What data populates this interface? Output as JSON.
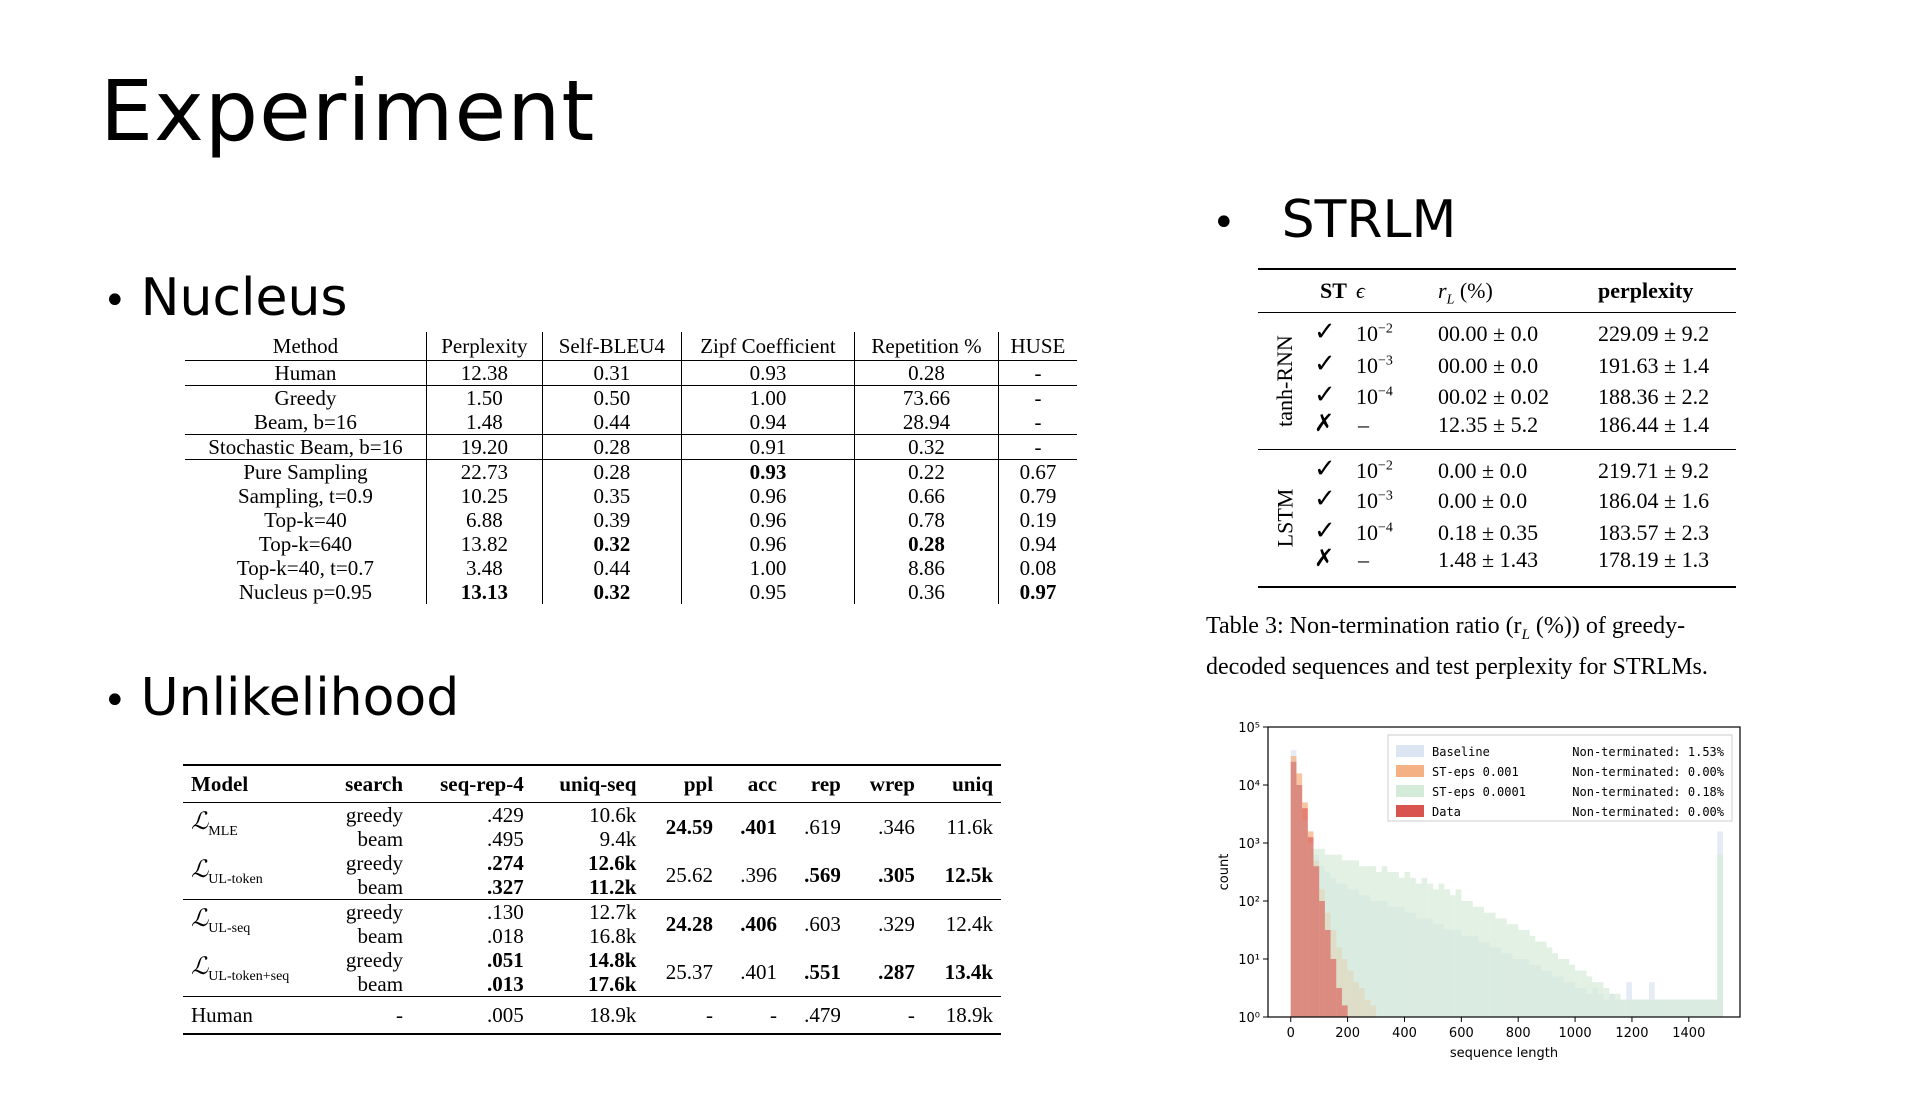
{
  "slide": {
    "title": "Experiment"
  },
  "bullets": {
    "nucleus": "Nucleus",
    "unlikelihood": "Unlikelihood",
    "strlm": "STRLM",
    "dot": "•"
  },
  "nucleus_table": {
    "headers": [
      "Method",
      "Perplexity",
      "Self-BLEU4",
      "Zipf Coefficient",
      "Repetition %",
      "HUSE"
    ],
    "rows": [
      [
        "Human",
        "12.38",
        "0.31",
        "0.93",
        "0.28",
        "-"
      ],
      [
        "Greedy",
        "1.50",
        "0.50",
        "1.00",
        "73.66",
        "-"
      ],
      [
        "Beam, b=16",
        "1.48",
        "0.44",
        "0.94",
        "28.94",
        "-"
      ],
      [
        "Stochastic Beam, b=16",
        "19.20",
        "0.28",
        "0.91",
        "0.32",
        "-"
      ],
      [
        "Pure Sampling",
        "22.73",
        "0.28",
        "0.93",
        "0.22",
        "0.67"
      ],
      [
        "Sampling, t=0.9",
        "10.25",
        "0.35",
        "0.96",
        "0.66",
        "0.79"
      ],
      [
        "Top-k=40",
        "6.88",
        "0.39",
        "0.96",
        "0.78",
        "0.19"
      ],
      [
        "Top-k=640",
        "13.82",
        "0.32",
        "0.96",
        "0.28",
        "0.94"
      ],
      [
        "Top-k=40, t=0.7",
        "3.48",
        "0.44",
        "1.00",
        "8.86",
        "0.08"
      ],
      [
        "Nucleus p=0.95",
        "13.13",
        "0.32",
        "0.95",
        "0.36",
        "0.97"
      ]
    ]
  },
  "unlikelihood_table": {
    "headers": [
      "Model",
      "search",
      "seq-rep-4",
      "uniq-seq",
      "ppl",
      "acc",
      "rep",
      "wrep",
      "uniq"
    ],
    "groups": [
      {
        "model": "ℒ",
        "sub": "MLE",
        "rows": [
          [
            "greedy",
            ".429",
            "10.6k"
          ],
          [
            "beam",
            ".495",
            "9.4k"
          ]
        ],
        "ppl": "24.59",
        "acc": ".401",
        "rep": ".619",
        "wrep": ".346",
        "uniq": "11.6k"
      },
      {
        "model": "ℒ",
        "sub": "UL-token",
        "rows": [
          [
            "greedy",
            ".274",
            "12.6k"
          ],
          [
            "beam",
            ".327",
            "11.2k"
          ]
        ],
        "ppl": "25.62",
        "acc": ".396",
        "rep": ".569",
        "wrep": ".305",
        "uniq": "12.5k"
      },
      {
        "model": "ℒ",
        "sub": "UL-seq",
        "rows": [
          [
            "greedy",
            ".130",
            "12.7k"
          ],
          [
            "beam",
            ".018",
            "16.8k"
          ]
        ],
        "ppl": "24.28",
        "acc": ".406",
        "rep": ".603",
        "wrep": ".329",
        "uniq": "12.4k"
      },
      {
        "model": "ℒ",
        "sub": "UL-token+seq",
        "rows": [
          [
            "greedy",
            ".051",
            "14.8k"
          ],
          [
            "beam",
            ".013",
            "17.6k"
          ]
        ],
        "ppl": "25.37",
        "acc": ".401",
        "rep": ".551",
        "wrep": ".287",
        "uniq": "13.4k"
      }
    ],
    "human": [
      "Human",
      "-",
      ".005",
      "18.9k",
      "-",
      "-",
      ".479",
      "-",
      "18.9k"
    ]
  },
  "strlm_table": {
    "headers": {
      "st": "ST",
      "eps": "ϵ",
      "rl": "r",
      "rl_sub": "L",
      "rl_unit": " (%)",
      "ppl": "perplexity"
    },
    "groups": [
      {
        "label": "tanh-RNN",
        "rows": [
          {
            "st": "✓",
            "eps": "10",
            "exp": "−2",
            "rl": "00.00 ± 0.0",
            "ppl": "229.09 ± 9.2"
          },
          {
            "st": "✓",
            "eps": "10",
            "exp": "−3",
            "rl": "00.00 ± 0.0",
            "ppl": "191.63 ± 1.4"
          },
          {
            "st": "✓",
            "eps": "10",
            "exp": "−4",
            "rl": "00.02 ± 0.02",
            "ppl": "188.36 ± 2.2"
          },
          {
            "st": "✗",
            "eps": "–",
            "exp": "",
            "rl": "12.35 ± 5.2",
            "ppl": "186.44 ± 1.4"
          }
        ]
      },
      {
        "label": "LSTM",
        "rows": [
          {
            "st": "✓",
            "eps": "10",
            "exp": "−2",
            "rl": "0.00 ± 0.0",
            "ppl": "219.71 ± 9.2"
          },
          {
            "st": "✓",
            "eps": "10",
            "exp": "−3",
            "rl": "0.00 ± 0.0",
            "ppl": "186.04 ± 1.6"
          },
          {
            "st": "✓",
            "eps": "10",
            "exp": "−4",
            "rl": "0.18 ± 0.35",
            "ppl": "183.57 ± 2.3"
          },
          {
            "st": "✗",
            "eps": "–",
            "exp": "",
            "rl": "1.48 ± 1.43",
            "ppl": "178.19 ± 1.3"
          }
        ]
      }
    ],
    "caption_line1": "Table 3:   Non-termination ratio (r",
    "caption_sub": "L",
    "caption_line1b": " (%)) of greedy-",
    "caption_line2": "decoded sequences and test perplexity for STRLMs."
  },
  "chart_data": {
    "type": "bar",
    "xlabel": "sequence length",
    "ylabel": "count",
    "xlim": [
      -80,
      1580
    ],
    "ylim_log10": [
      0,
      5
    ],
    "x_ticks": [
      "0",
      "200",
      "400",
      "600",
      "800",
      "1000",
      "1200",
      "1400"
    ],
    "y_ticks": [
      "10⁰",
      "10¹",
      "10²",
      "10³",
      "10⁴",
      "10⁵"
    ],
    "legend_position": "top-right",
    "bin_width": 20,
    "series": [
      {
        "name": "Baseline",
        "note": "Non-terminated: 1.53%",
        "color": "#dce6f2",
        "log10_counts": [
          4.6,
          4.0,
          3.3,
          3.0,
          2.8,
          2.6,
          2.5,
          2.4,
          2.3,
          2.3,
          2.2,
          2.2,
          2.1,
          2.1,
          2.0,
          2.0,
          2.0,
          1.9,
          1.9,
          1.9,
          1.8,
          1.8,
          1.7,
          1.7,
          1.7,
          1.6,
          1.6,
          1.5,
          1.5,
          1.5,
          1.4,
          1.4,
          1.4,
          1.3,
          1.3,
          1.2,
          1.2,
          1.1,
          1.1,
          1.0,
          1.0,
          1.0,
          0.9,
          0.9,
          0.8,
          0.8,
          0.7,
          0.7,
          0.6,
          0.6,
          0.5,
          0.5,
          0.4,
          0.5,
          0.4,
          0.3,
          0.4,
          0.3,
          0.3,
          0.6,
          0.3,
          0.3,
          0.3,
          0.6,
          0.3,
          0.3,
          0.3,
          0.3,
          0.3,
          0.3,
          0.3,
          0.3,
          0.3,
          0.3,
          0.3,
          3.2
        ]
      },
      {
        "name": "ST-eps 0.001",
        "note": "Non-terminated: 0.00%",
        "color": "#f4b183",
        "log10_counts": [
          4.5,
          4.2,
          3.7,
          3.2,
          2.7,
          2.2,
          1.8,
          1.5,
          1.2,
          1.0,
          0.8,
          0.6,
          0.5,
          0.3,
          0.2,
          0.0,
          0,
          0,
          0,
          0,
          0,
          0,
          0,
          0,
          0,
          0,
          0,
          0,
          0,
          0,
          0,
          0,
          0,
          0,
          0,
          0,
          0,
          0,
          0,
          0,
          0,
          0,
          0,
          0,
          0,
          0,
          0,
          0,
          0,
          0,
          0,
          0,
          0,
          0,
          0,
          0,
          0,
          0,
          0,
          0,
          0,
          0,
          0,
          0,
          0,
          0,
          0,
          0,
          0,
          0,
          0,
          0,
          0,
          0,
          0,
          0
        ]
      },
      {
        "name": "ST-eps 0.0001",
        "note": "Non-terminated: 0.18%",
        "color": "#d5ebd9",
        "log10_counts": [
          4.4,
          4.0,
          3.4,
          3.0,
          2.9,
          2.9,
          2.8,
          2.8,
          2.8,
          2.7,
          2.7,
          2.7,
          2.6,
          2.6,
          2.6,
          2.5,
          2.6,
          2.5,
          2.5,
          2.4,
          2.5,
          2.4,
          2.3,
          2.4,
          2.3,
          2.2,
          2.3,
          2.2,
          2.1,
          2.2,
          2.0,
          2.0,
          1.9,
          1.9,
          1.8,
          1.8,
          1.7,
          1.7,
          1.6,
          1.6,
          1.5,
          1.5,
          1.4,
          1.3,
          1.3,
          1.2,
          1.1,
          1.0,
          1.0,
          0.9,
          0.8,
          0.8,
          0.7,
          0.6,
          0.6,
          0.5,
          0.4,
          0.4,
          0.3,
          0.3,
          0.3,
          0.3,
          0.3,
          0.3,
          0.3,
          0.3,
          0.3,
          0.3,
          0.3,
          0.3,
          0.3,
          0.3,
          0.3,
          0.3,
          0.3,
          2.8
        ]
      },
      {
        "name": "Data",
        "note": "Non-terminated: 0.00%",
        "color": "#d9534f",
        "log10_counts": [
          4.4,
          4.0,
          3.6,
          3.1,
          2.6,
          2.0,
          1.5,
          1.0,
          0.5,
          0.2,
          0,
          0,
          0,
          0,
          0,
          0,
          0,
          0,
          0,
          0,
          0,
          0,
          0,
          0,
          0,
          0,
          0,
          0,
          0,
          0,
          0,
          0,
          0,
          0,
          0,
          0,
          0,
          0,
          0,
          0,
          0,
          0,
          0,
          0,
          0,
          0,
          0,
          0,
          0,
          0,
          0,
          0,
          0,
          0,
          0,
          0,
          0,
          0,
          0,
          0,
          0,
          0,
          0,
          0,
          0,
          0,
          0,
          0,
          0,
          0,
          0,
          0,
          0,
          0,
          0,
          0
        ]
      }
    ]
  }
}
